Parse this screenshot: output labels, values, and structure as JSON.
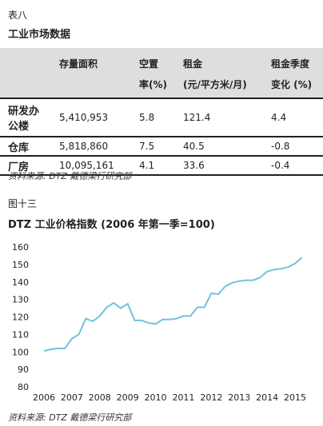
{
  "table_label": "表八",
  "table_title": "工业市场数据",
  "table": {
    "headers_top": [
      "",
      "存量面积",
      "空置",
      "租金",
      "租金季度"
    ],
    "headers_bottom": [
      "",
      "",
      "率(%)",
      "(元/平方米/月)",
      "变化 (%)"
    ],
    "rows": [
      {
        "name_line1": "研发办",
        "name_line2": "公楼",
        "area": "5,410,953",
        "vacancy": "5.8",
        "rent": "121.4",
        "change": "4.4"
      },
      {
        "name_line1": "仓库",
        "name_line2": "",
        "area": "5,818,860",
        "vacancy": "7.5",
        "rent": "40.5",
        "change": "-0.8"
      },
      {
        "name_line1": "厂房",
        "name_line2": "",
        "area": "10,095,161",
        "vacancy": "4.1",
        "rent": "33.6",
        "change": "-0.4"
      }
    ]
  },
  "table_source": "资料来源: DTZ 戴德梁行研究部",
  "chart_label": "图十三",
  "chart_title": "DTZ 工业价格指数 (2006 年第一季=100)",
  "chart_source": "资料来源: DTZ 戴德梁行研究部",
  "colors": {
    "line": "#6fc3dd",
    "header_bg": "#dedede"
  },
  "chart_data": {
    "type": "line",
    "title": "DTZ 工业价格指数 (2006 年第一季=100)",
    "xlabel": "",
    "ylabel": "",
    "x_ticks": [
      "2006",
      "2007",
      "2008",
      "2009",
      "2010",
      "2011",
      "2012",
      "2013",
      "2014",
      "2015"
    ],
    "y_ticks": [
      "80",
      "90",
      "100",
      "110",
      "120",
      "130",
      "140",
      "150",
      "160"
    ],
    "xlim": [
      2006,
      2015.3
    ],
    "ylim": [
      80,
      160
    ],
    "grid": false,
    "series": [
      {
        "x": [
          2006.0,
          2006.25,
          2006.5,
          2006.75,
          2007.0,
          2007.25,
          2007.5,
          2007.75,
          2008.0,
          2008.25,
          2008.5,
          2008.75,
          2009.0,
          2009.25,
          2009.5,
          2009.75,
          2010.0,
          2010.25,
          2010.5,
          2010.75,
          2011.0,
          2011.25,
          2011.5,
          2011.75,
          2012.0,
          2012.25,
          2012.5,
          2012.75,
          2013.0,
          2013.25,
          2013.5,
          2013.75,
          2014.0,
          2014.25,
          2014.5,
          2014.75,
          2015.0,
          2015.25
        ],
        "y": [
          100.5,
          101.5,
          102,
          102,
          107.5,
          110,
          119,
          117.5,
          120.5,
          125.5,
          128,
          125,
          127.5,
          118,
          118,
          116.5,
          116,
          118.5,
          118.5,
          119,
          120.5,
          120.5,
          125.5,
          125.5,
          133.5,
          133,
          137.5,
          139.5,
          140.5,
          141,
          141,
          142.5,
          146,
          147,
          147.5,
          148.5,
          150.5,
          154
        ]
      }
    ]
  }
}
